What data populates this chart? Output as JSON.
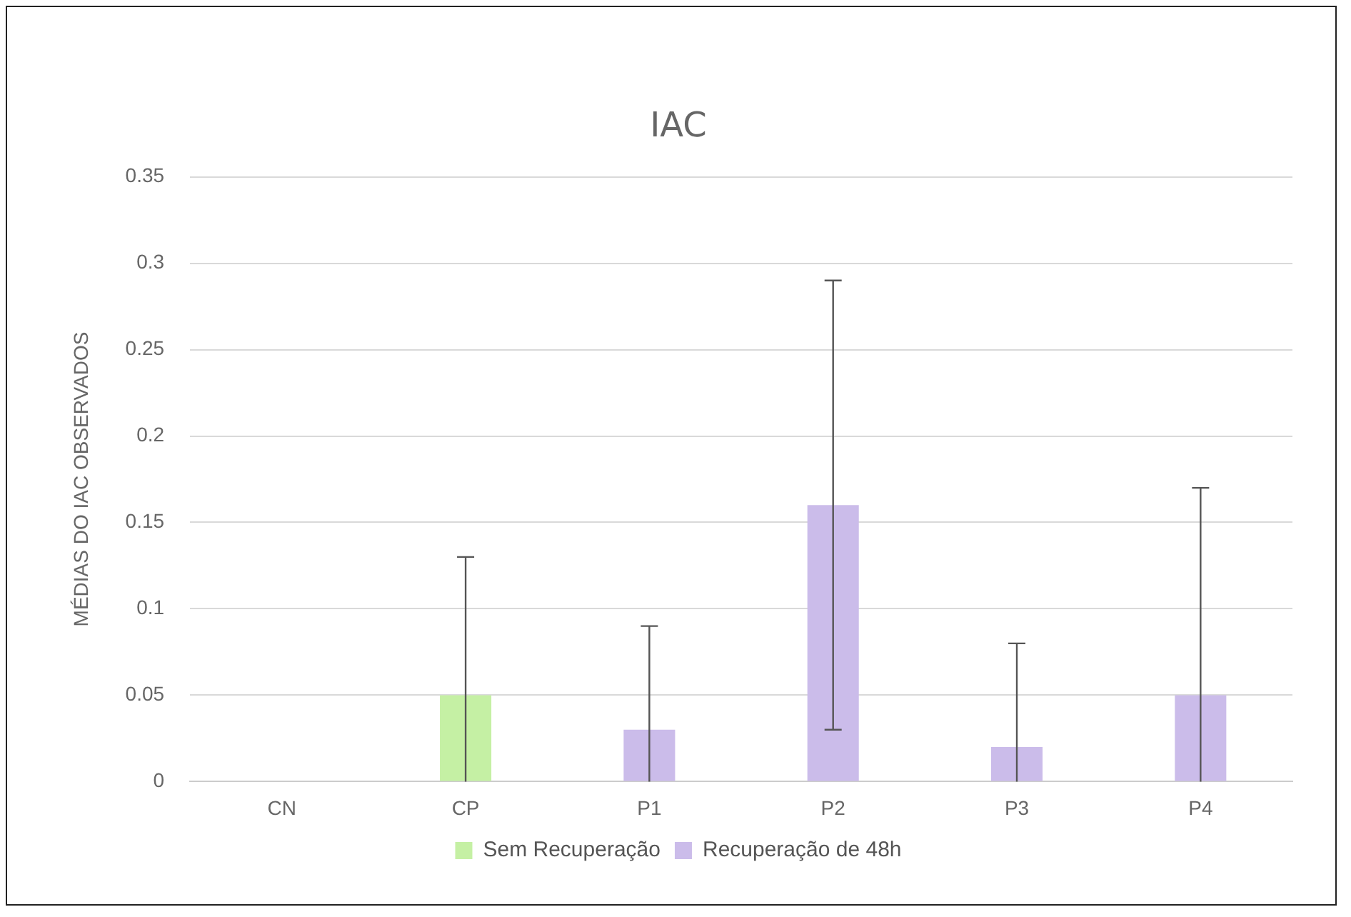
{
  "chart_data": {
    "type": "bar",
    "title": "IAC",
    "ylabel": "MÉDIAS DO IAC OBSERVADOS",
    "categories": [
      "CN",
      "CP",
      "P1",
      "P2",
      "P3",
      "P4"
    ],
    "series": [
      {
        "name": "Sem Recuperação",
        "color": "#c5f0a4",
        "values": [
          null,
          0.05,
          null,
          null,
          null,
          null
        ],
        "errors": [
          null,
          [
            0,
            0.13
          ],
          null,
          null,
          null,
          null
        ]
      },
      {
        "name": "Recuperação de 48h",
        "color": "#cbbcea",
        "values": [
          null,
          null,
          0.03,
          0.16,
          0.02,
          0.05
        ],
        "errors": [
          null,
          null,
          [
            0,
            0.09
          ],
          0.13,
          [
            0,
            0.08
          ],
          [
            0,
            0.17
          ]
        ]
      }
    ],
    "ylim": [
      0,
      0.35
    ],
    "yticks": [
      0,
      0.05,
      0.1,
      0.15,
      0.2,
      0.25,
      0.3,
      0.35
    ],
    "grid": "y",
    "legend": "bottom"
  }
}
